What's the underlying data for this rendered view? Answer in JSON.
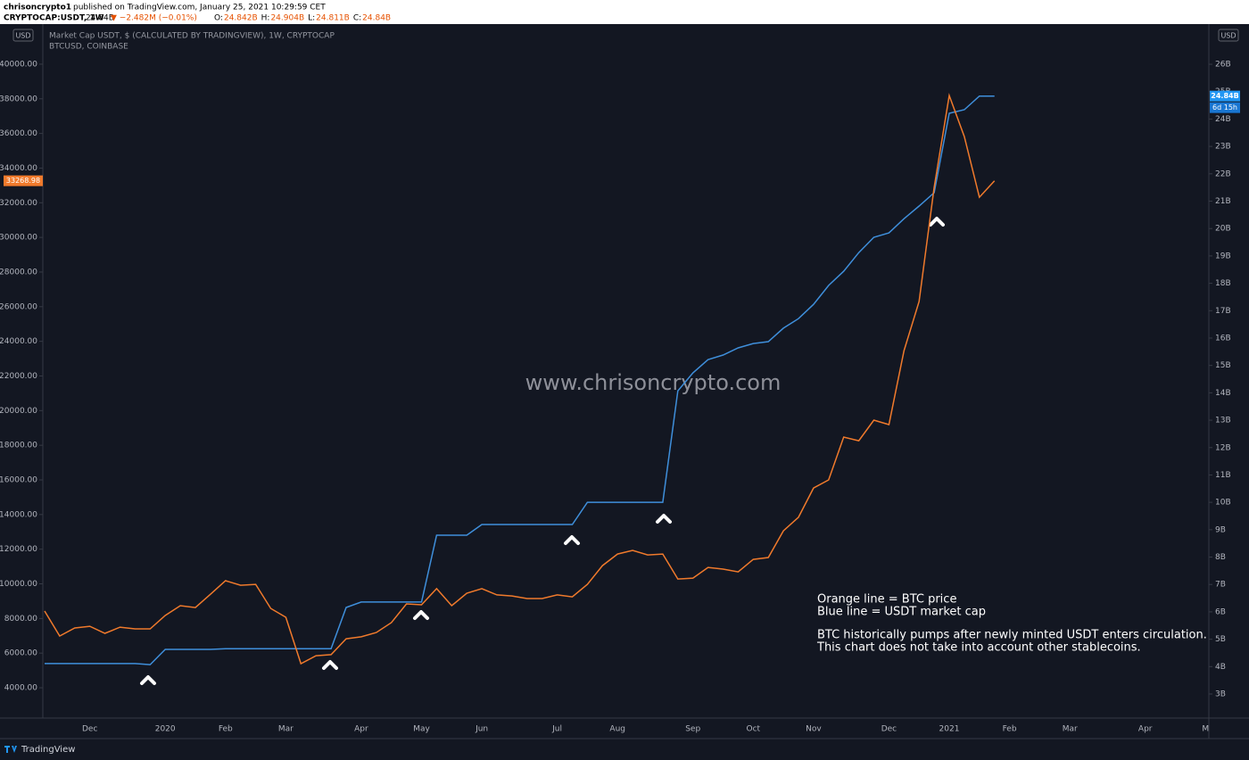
{
  "header": {
    "user": "chrisoncrypto1",
    "published": "published on TradingView.com, January 25, 2021 10:29:59 CET",
    "symbol": "CRYPTOCAP:USDT, 1W",
    "last": "24.84B",
    "change": "▼ −2.482M (−0.01%)",
    "ohlc": [
      {
        "label": "O:",
        "value": "24.842B"
      },
      {
        "label": "H:",
        "value": "24.904B"
      },
      {
        "label": "L:",
        "value": "24.811B"
      },
      {
        "label": "C:",
        "value": "24.84B"
      }
    ]
  },
  "chart_data": {
    "type": "line",
    "legend": [
      "Market Cap USDT, $ (CALCULATED BY TRADINGVIEW), 1W, CRYPTOCAP",
      "BTCUSD, COINBASE"
    ],
    "watermark": "www.chrisoncrypto.com",
    "annotations": [
      "Orange line = BTC price",
      "Blue line = USDT market cap",
      "BTC historically pumps after newly minted USDT enters circulation.",
      "This chart does not take into account other stablecoins."
    ],
    "axis_unit": "USD",
    "categories": [
      null,
      null,
      null,
      "Dec",
      null,
      null,
      null,
      null,
      "2020",
      null,
      null,
      null,
      "Feb",
      null,
      null,
      null,
      "Mar",
      null,
      null,
      null,
      null,
      "Apr",
      null,
      null,
      null,
      "May",
      null,
      null,
      null,
      "Jun",
      null,
      null,
      null,
      null,
      "Jul",
      null,
      null,
      null,
      "Aug",
      null,
      null,
      null,
      null,
      "Sep",
      null,
      null,
      null,
      "Oct",
      null,
      null,
      null,
      "Nov",
      null,
      null,
      null,
      null,
      "Dec",
      null,
      null,
      null,
      "2021",
      null,
      null,
      null,
      "Feb",
      null,
      null,
      null,
      "Mar",
      null,
      null,
      null,
      null,
      "Apr",
      null,
      null,
      null,
      "M"
    ],
    "series": [
      {
        "name": "Market Cap USDT",
        "color": "#3f8fdb",
        "axis": "y2",
        "countdown": "6d 15h",
        "values": [
          4.11,
          4.11,
          4.11,
          4.11,
          4.11,
          4.11,
          4.11,
          4.07,
          4.63,
          4.63,
          4.63,
          4.63,
          4.65,
          4.65,
          4.65,
          4.65,
          4.65,
          4.65,
          4.65,
          4.65,
          6.16,
          6.36,
          6.36,
          6.36,
          6.36,
          6.36,
          8.8,
          8.8,
          8.8,
          9.19,
          9.19,
          9.19,
          9.19,
          9.19,
          9.19,
          9.19,
          10.0,
          10.0,
          10.0,
          10.0,
          10.0,
          10.0,
          14.07,
          14.73,
          15.21,
          15.38,
          15.64,
          15.8,
          15.87,
          16.36,
          16.71,
          17.23,
          17.92,
          18.44,
          19.12,
          19.68,
          19.84,
          20.36,
          20.82,
          21.31,
          24.21,
          24.34,
          24.84,
          24.84,
          null,
          null,
          null,
          null,
          null,
          null,
          null,
          null,
          null,
          null,
          null,
          null,
          null,
          null
        ],
        "value_labels": [
          null,
          null,
          null,
          null,
          null,
          null,
          null,
          null,
          null,
          null,
          null,
          null,
          null,
          null,
          null,
          null,
          null,
          null,
          null,
          null,
          null,
          null,
          null,
          null,
          null,
          null,
          null,
          null,
          null,
          null,
          null,
          null,
          null,
          null,
          null,
          null,
          null,
          null,
          null,
          null,
          null,
          null,
          null,
          null,
          null,
          null,
          null,
          null,
          null,
          null,
          null,
          null,
          null,
          null,
          null,
          null,
          null,
          null,
          null,
          null,
          null,
          null,
          null,
          "24.84B",
          null,
          null,
          null,
          null,
          null,
          null,
          null,
          null,
          null,
          null,
          null,
          null,
          null,
          null
        ]
      },
      {
        "name": "BTCUSD",
        "color": "#f07a2c",
        "values": [
          8430,
          6990,
          7450,
          7550,
          7140,
          7500,
          7400,
          7400,
          8170,
          8740,
          8630,
          9400,
          10180,
          9920,
          9970,
          8580,
          8070,
          5390,
          5850,
          5910,
          6830,
          6940,
          7190,
          7760,
          8840,
          8790,
          9720,
          8740,
          9460,
          9720,
          9360,
          9300,
          9150,
          9150,
          9360,
          9250,
          9970,
          11050,
          11720,
          11930,
          11670,
          11720,
          10280,
          10330,
          10950,
          10850,
          10690,
          11410,
          11520,
          13060,
          13840,
          15530,
          16000,
          18470,
          18260,
          19450,
          19190,
          23460,
          26300,
          32890,
          38190,
          35820,
          32320,
          33268.98,
          null,
          null,
          null,
          null,
          null,
          null,
          null,
          null,
          null,
          null,
          null,
          null,
          null,
          null
        ]
      }
    ],
    "ylim": [
      2250,
      42160
    ],
    "yticks": [
      {
        "value": 4000,
        "label": "4000.00"
      },
      {
        "value": 6000,
        "label": "6000.00"
      },
      {
        "value": 8000,
        "label": "8000.00"
      },
      {
        "value": 10000,
        "label": "10000.00"
      },
      {
        "value": 12000,
        "label": "12000.00"
      },
      {
        "value": 14000,
        "label": "14000.00"
      },
      {
        "value": 16000,
        "label": "16000.00"
      },
      {
        "value": 18000,
        "label": "18000.00"
      },
      {
        "value": 20000,
        "label": "20000.00"
      },
      {
        "value": 22000,
        "label": "22000.00"
      },
      {
        "value": 24000,
        "label": "24000.00"
      },
      {
        "value": 26000,
        "label": "26000.00"
      },
      {
        "value": 28000,
        "label": "28000.00"
      },
      {
        "value": 30000,
        "label": "30000.00"
      },
      {
        "value": 32000,
        "label": "32000.00"
      },
      {
        "value": 34000,
        "label": "34000.00"
      },
      {
        "value": 36000,
        "label": "36000.00"
      },
      {
        "value": 38000,
        "label": "38000.00"
      },
      {
        "value": 40000,
        "label": "40000.00"
      }
    ],
    "y2lim": [
      2.12,
      27.37
    ],
    "y2ticks": [
      {
        "value": 3,
        "label": "3B"
      },
      {
        "value": 4,
        "label": "4B"
      },
      {
        "value": 5,
        "label": "5B"
      },
      {
        "value": 6,
        "label": "6B"
      },
      {
        "value": 7,
        "label": "7B"
      },
      {
        "value": 8,
        "label": "8B"
      },
      {
        "value": 9,
        "label": "9B"
      },
      {
        "value": 10,
        "label": "10B"
      },
      {
        "value": 11,
        "label": "11B"
      },
      {
        "value": 12,
        "label": "12B"
      },
      {
        "value": 13,
        "label": "13B"
      },
      {
        "value": 14,
        "label": "14B"
      },
      {
        "value": 15,
        "label": "15B"
      },
      {
        "value": 16,
        "label": "16B"
      },
      {
        "value": 17,
        "label": "17B"
      },
      {
        "value": 18,
        "label": "18B"
      },
      {
        "value": 19,
        "label": "19B"
      },
      {
        "value": 20,
        "label": "20B"
      },
      {
        "value": 21,
        "label": "21B"
      },
      {
        "value": 22,
        "label": "22B"
      },
      {
        "value": 23,
        "label": "23B"
      },
      {
        "value": 24,
        "label": "24B"
      },
      {
        "value": 25,
        "label": "25B"
      },
      {
        "value": 26,
        "label": "26B"
      }
    ],
    "grid": false
  },
  "footer": {
    "brand": "TradingView"
  }
}
